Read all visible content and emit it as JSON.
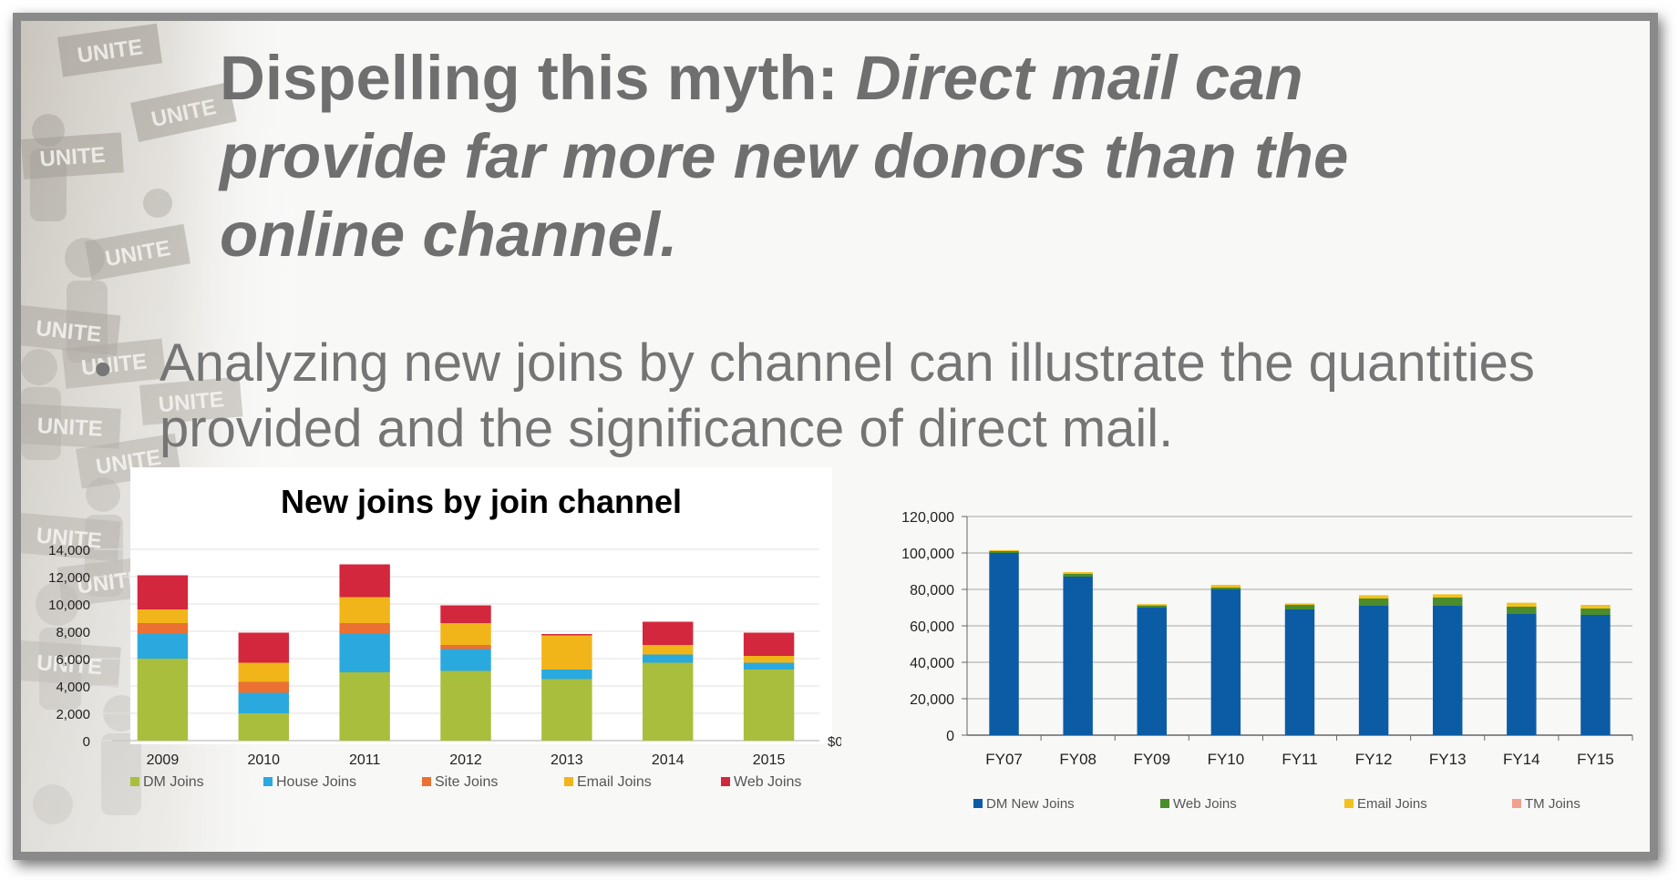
{
  "slide": {
    "title_plain": "Dispelling this myth: ",
    "title_italic": "Direct mail can provide far more new donors than the online channel.",
    "bullet_glyph": "•",
    "bullet_text": "Analyzing new joins by channel can illustrate the quantities provided and the significance of direct mail.",
    "collage_sign_text": "UNITE",
    "colors": {
      "title": "#6f6f6f",
      "body": "#757575",
      "border": "#8a8a8a"
    }
  },
  "chart_data": [
    {
      "type": "bar",
      "stacked": true,
      "title": "New joins by join channel",
      "categories": [
        "2009",
        "2010",
        "2011",
        "2012",
        "2013",
        "2014",
        "2015"
      ],
      "ylim": [
        0,
        14000
      ],
      "yticks": [
        "14,000",
        "12,000",
        "10,000",
        "8,000",
        "6,000",
        "4,000",
        "2,000",
        "0"
      ],
      "secondary_axis_label": "$0",
      "grid": true,
      "legend": "bottom",
      "series": [
        {
          "name": "DM Joins",
          "color": "#a9be3c",
          "values": [
            6000,
            2000,
            5000,
            5100,
            4500,
            5700,
            5200
          ]
        },
        {
          "name": "House Joins",
          "color": "#2aa9df",
          "values": [
            1800,
            1500,
            2800,
            1600,
            700,
            600,
            500
          ]
        },
        {
          "name": "Site Joins",
          "color": "#ec7032",
          "values": [
            800,
            800,
            800,
            300,
            0,
            0,
            0
          ]
        },
        {
          "name": "Email Joins",
          "color": "#f1b51a",
          "values": [
            1000,
            1400,
            1900,
            1600,
            2500,
            700,
            500
          ]
        },
        {
          "name": "Web Joins",
          "color": "#d3273e",
          "values": [
            2500,
            2200,
            2400,
            1300,
            100,
            1700,
            1700
          ]
        }
      ]
    },
    {
      "type": "bar",
      "stacked": true,
      "title": "",
      "categories": [
        "FY07",
        "FY08",
        "FY09",
        "FY10",
        "FY11",
        "FY12",
        "FY13",
        "FY14",
        "FY15"
      ],
      "ylim": [
        0,
        120000
      ],
      "yticks": [
        "120,000",
        "100,000",
        "80,000",
        "60,000",
        "40,000",
        "20,000",
        "0"
      ],
      "grid": true,
      "legend": "bottom",
      "series": [
        {
          "name": "DM New Joins",
          "color": "#0c5ca5",
          "values": [
            100000,
            87000,
            70000,
            80000,
            69000,
            71000,
            71000,
            66500,
            66000
          ]
        },
        {
          "name": "Web Joins",
          "color": "#4b8c2c",
          "values": [
            1000,
            1500,
            1200,
            1000,
            2500,
            4000,
            4500,
            4000,
            3500
          ]
        },
        {
          "name": "Email Joins",
          "color": "#f3c11d",
          "values": [
            500,
            1000,
            700,
            1500,
            800,
            1800,
            1800,
            2200,
            2000
          ]
        },
        {
          "name": "TM Joins",
          "color": "#f0a28e",
          "values": [
            0,
            0,
            0,
            0,
            0,
            0,
            0,
            0,
            0
          ]
        }
      ]
    }
  ]
}
